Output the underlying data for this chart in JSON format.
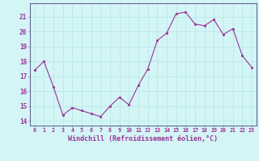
{
  "x": [
    0,
    1,
    2,
    3,
    4,
    5,
    6,
    7,
    8,
    9,
    10,
    11,
    12,
    13,
    14,
    15,
    16,
    17,
    18,
    19,
    20,
    21,
    22,
    23
  ],
  "y": [
    17.4,
    18.0,
    16.3,
    14.4,
    14.9,
    14.7,
    14.5,
    14.3,
    15.0,
    15.6,
    15.1,
    16.4,
    17.5,
    19.4,
    19.9,
    21.2,
    21.3,
    20.5,
    20.4,
    20.8,
    19.8,
    20.2,
    18.4,
    17.6
  ],
  "xlabel": "Windchill (Refroidissement éolien,°C)",
  "ylim": [
    13.7,
    21.9
  ],
  "yticks": [
    14,
    15,
    16,
    17,
    18,
    19,
    20,
    21
  ],
  "xticks": [
    0,
    1,
    2,
    3,
    4,
    5,
    6,
    7,
    8,
    9,
    10,
    11,
    12,
    13,
    14,
    15,
    16,
    17,
    18,
    19,
    20,
    21,
    22,
    23
  ],
  "line_color": "#993399",
  "marker_color": "#993399",
  "background_color": "#d4f5f5",
  "grid_color": "#b8e8e8",
  "tick_label_color": "#993399",
  "xlabel_color": "#993399",
  "axis_color": "#aaaaaa",
  "spine_color": "#666699"
}
